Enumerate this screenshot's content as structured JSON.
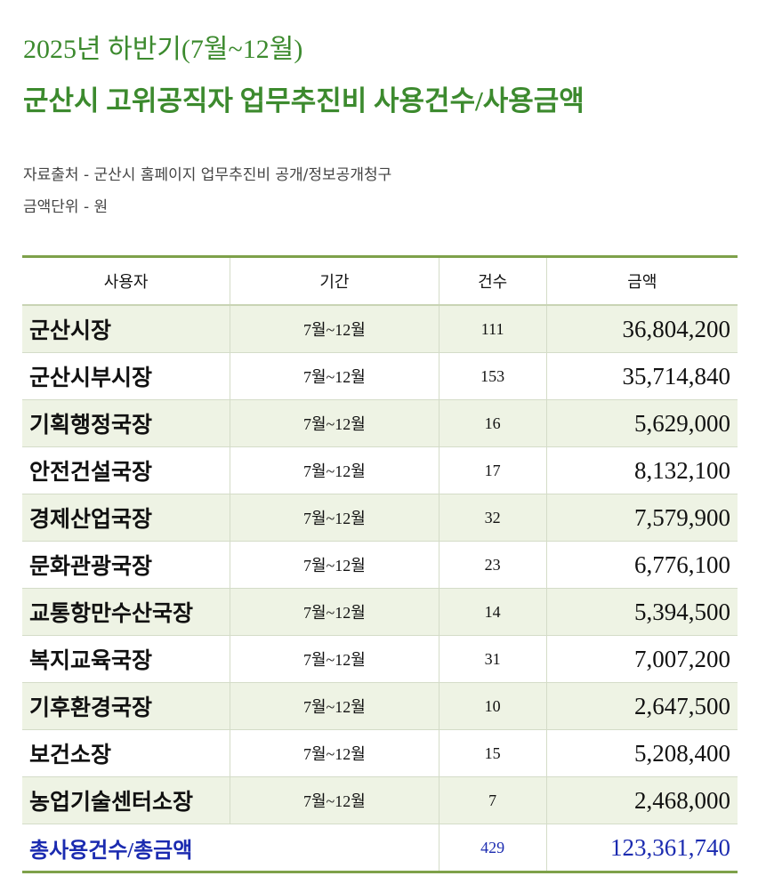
{
  "header": {
    "title_line1": "2025년 하반기(7월~12월)",
    "title_line2": "군산시 고위공직자 업무추진비 사용건수/사용금액"
  },
  "notes": [
    "자료출처 - 군산시 홈페이지 업무추진비 공개/정보공개청구",
    "금액단위 - 원"
  ],
  "table": {
    "columns": [
      "사용자",
      "기간",
      "건수",
      "금액"
    ],
    "rows": [
      [
        "군산시장",
        "7월~12월",
        "111",
        "36,804,200"
      ],
      [
        "군산시부시장",
        "7월~12월",
        "153",
        "35,714,840"
      ],
      [
        "기획행정국장",
        "7월~12월",
        "16",
        "5,629,000"
      ],
      [
        "안전건설국장",
        "7월~12월",
        "17",
        "8,132,100"
      ],
      [
        "경제산업국장",
        "7월~12월",
        "32",
        "7,579,900"
      ],
      [
        "문화관광국장",
        "7월~12월",
        "23",
        "6,776,100"
      ],
      [
        "교통항만수산국장",
        "7월~12월",
        "14",
        "5,394,500"
      ],
      [
        "복지교육국장",
        "7월~12월",
        "31",
        "7,007,200"
      ],
      [
        "기후환경국장",
        "7월~12월",
        "10",
        "2,647,500"
      ],
      [
        "보건소장",
        "7월~12월",
        "15",
        "5,208,400"
      ],
      [
        "농업기술센터소장",
        "7월~12월",
        "7",
        "2,468,000"
      ]
    ],
    "total": {
      "label": "총사용건수/총금액",
      "count": "429",
      "amount": "123,361,740"
    }
  }
}
